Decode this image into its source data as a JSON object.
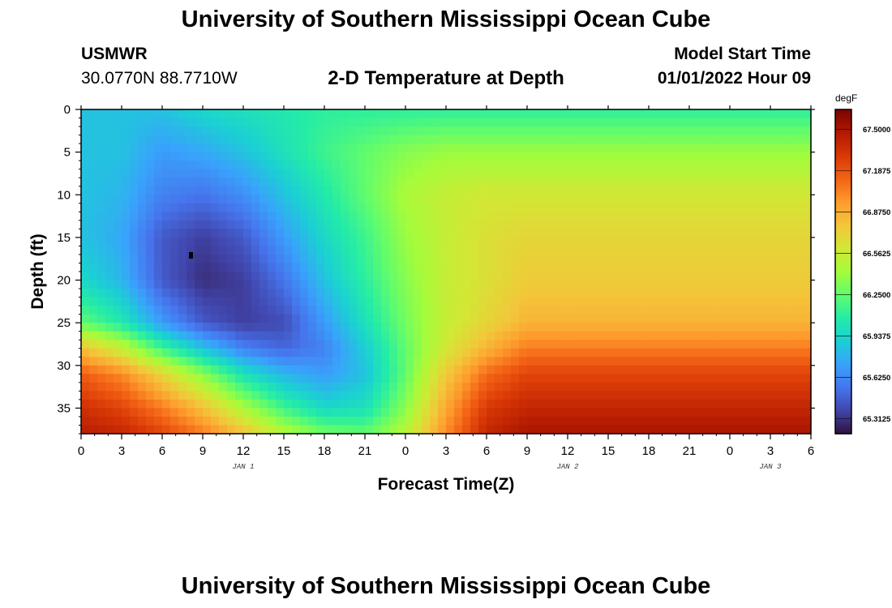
{
  "header": {
    "title": "University of Southern Mississippi Ocean Cube",
    "station": "USMWR",
    "coordinates": "30.0770N  88.7710W",
    "subtitle": "2-D Temperature at Depth",
    "model_start_label": "Model Start Time",
    "model_start_value": "01/01/2022 Hour 09"
  },
  "footer": {
    "title": "University of Southern Mississippi Ocean Cube"
  },
  "chart_data": {
    "type": "heatmap",
    "title": "2-D Temperature at Depth",
    "xlabel": "Forecast Time(Z)",
    "ylabel": "Depth (ft)",
    "units": "degF",
    "x_hours_range": [
      0,
      54
    ],
    "x_tick_labels": [
      "0",
      "3",
      "6",
      "9",
      "12",
      "15",
      "18",
      "21",
      "0",
      "3",
      "6",
      "9",
      "12",
      "15",
      "18",
      "21",
      "0",
      "3",
      "6"
    ],
    "day_labels": [
      {
        "label": "JAN 1",
        "hour": 12
      },
      {
        "label": "JAN 2",
        "hour": 36
      },
      {
        "label": "JAN 3",
        "hour": 51
      }
    ],
    "y_range": [
      0,
      38
    ],
    "y_ticks": [
      0,
      5,
      10,
      15,
      20,
      25,
      30,
      35
    ],
    "colorbar_labels": [
      "67.5000",
      "67.1875",
      "66.8750",
      "66.5625",
      "66.2500",
      "65.9375",
      "65.6250",
      "65.3125"
    ],
    "value_range": [
      65.2,
      67.65
    ],
    "colors": {
      "scale": [
        "#30123b",
        "#4145ab",
        "#4675ed",
        "#39a2fc",
        "#1bcfd4",
        "#24eca6",
        "#61fc6c",
        "#a4fc3b",
        "#d1e834",
        "#f3c63a",
        "#fe9b2d",
        "#f36315",
        "#d93806",
        "#b11901",
        "#7a0403"
      ]
    },
    "temperature_field": {
      "times": [
        0,
        3,
        6,
        9,
        12,
        15,
        18,
        21,
        24,
        27,
        30,
        33,
        36,
        39,
        42,
        45,
        48,
        51,
        54
      ],
      "depths": [
        0,
        5,
        10,
        15,
        20,
        25,
        28,
        31,
        35,
        38
      ],
      "values": [
        [
          65.85,
          65.85,
          65.85,
          65.95,
          66.0,
          66.05,
          66.1,
          66.1,
          66.1,
          66.1,
          66.1,
          66.1,
          66.1,
          66.1,
          66.1,
          66.1,
          66.1,
          66.1,
          66.1,
          66.1
        ],
        [
          65.85,
          65.85,
          65.7,
          65.75,
          65.85,
          66.0,
          66.15,
          66.25,
          66.35,
          66.4,
          66.4,
          66.4,
          66.4,
          66.4,
          66.4,
          66.4,
          66.4,
          66.4,
          66.4,
          66.4
        ],
        [
          65.85,
          65.8,
          65.6,
          65.55,
          65.65,
          65.85,
          66.05,
          66.25,
          66.45,
          66.55,
          66.6,
          66.6,
          66.6,
          66.6,
          66.6,
          66.6,
          66.6,
          66.6,
          66.6,
          66.6
        ],
        [
          65.85,
          65.75,
          65.45,
          65.35,
          65.45,
          65.7,
          65.95,
          66.15,
          66.4,
          66.55,
          66.65,
          66.7,
          66.7,
          66.7,
          66.7,
          66.7,
          66.7,
          66.7,
          66.7,
          66.7
        ],
        [
          65.95,
          65.8,
          65.45,
          65.3,
          65.35,
          65.55,
          65.85,
          66.1,
          66.35,
          66.55,
          66.65,
          66.75,
          66.75,
          66.75,
          66.75,
          66.75,
          66.75,
          66.75,
          66.75,
          66.75
        ],
        [
          66.25,
          66.05,
          65.7,
          65.45,
          65.35,
          65.4,
          65.7,
          66.0,
          66.3,
          66.55,
          66.7,
          66.85,
          66.85,
          66.85,
          66.85,
          66.85,
          66.85,
          66.85,
          66.85,
          66.85
        ],
        [
          66.8,
          66.55,
          66.15,
          65.85,
          65.6,
          65.5,
          65.6,
          65.9,
          66.25,
          66.6,
          66.85,
          67.05,
          67.05,
          67.05,
          67.05,
          67.05,
          67.05,
          67.05,
          67.05,
          67.05
        ],
        [
          67.15,
          67.0,
          66.7,
          66.35,
          66.0,
          65.8,
          65.7,
          65.85,
          66.25,
          66.75,
          67.1,
          67.25,
          67.25,
          67.25,
          67.25,
          67.25,
          67.25,
          67.25,
          67.25,
          67.25
        ],
        [
          67.35,
          67.25,
          67.05,
          66.8,
          66.45,
          66.15,
          65.95,
          66.0,
          66.35,
          66.9,
          67.3,
          67.4,
          67.4,
          67.4,
          67.4,
          67.4,
          67.4,
          67.4,
          67.4,
          67.4
        ],
        [
          67.45,
          67.4,
          67.25,
          67.05,
          66.8,
          66.5,
          66.3,
          66.25,
          66.5,
          67.0,
          67.4,
          67.5,
          67.5,
          67.5,
          67.5,
          67.5,
          67.5,
          67.5,
          67.5,
          67.5
        ]
      ]
    }
  }
}
